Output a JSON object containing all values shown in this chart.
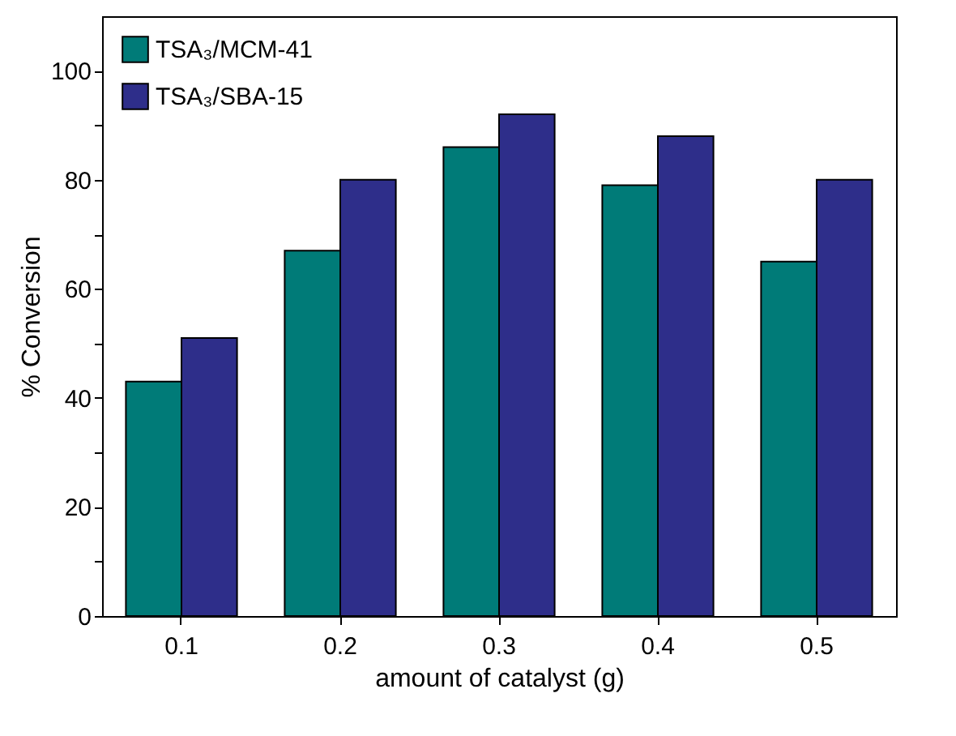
{
  "chart_data": {
    "type": "bar",
    "xlabel": "amount of catalyst (g)",
    "ylabel": "% Conversion",
    "categories": [
      "0.1",
      "0.2",
      "0.3",
      "0.4",
      "0.5"
    ],
    "series": [
      {
        "name": "TSA₃/MCM-41",
        "color": "#007b78",
        "values": [
          43,
          67,
          86,
          79,
          65
        ]
      },
      {
        "name": "TSA₃/SBA-15",
        "color": "#2e2e8a",
        "values": [
          51,
          80,
          92,
          88,
          80
        ]
      }
    ],
    "ylim": [
      0,
      110
    ],
    "yticks": [
      0,
      {
        "value": 10,
        "label": null
      },
      20,
      {
        "value": 30,
        "label": null
      },
      40,
      {
        "value": 50,
        "label": null
      },
      60,
      {
        "value": 70,
        "label": null
      },
      80,
      {
        "value": 90,
        "label": null
      },
      100
    ],
    "grid": false,
    "legend": "top left"
  }
}
